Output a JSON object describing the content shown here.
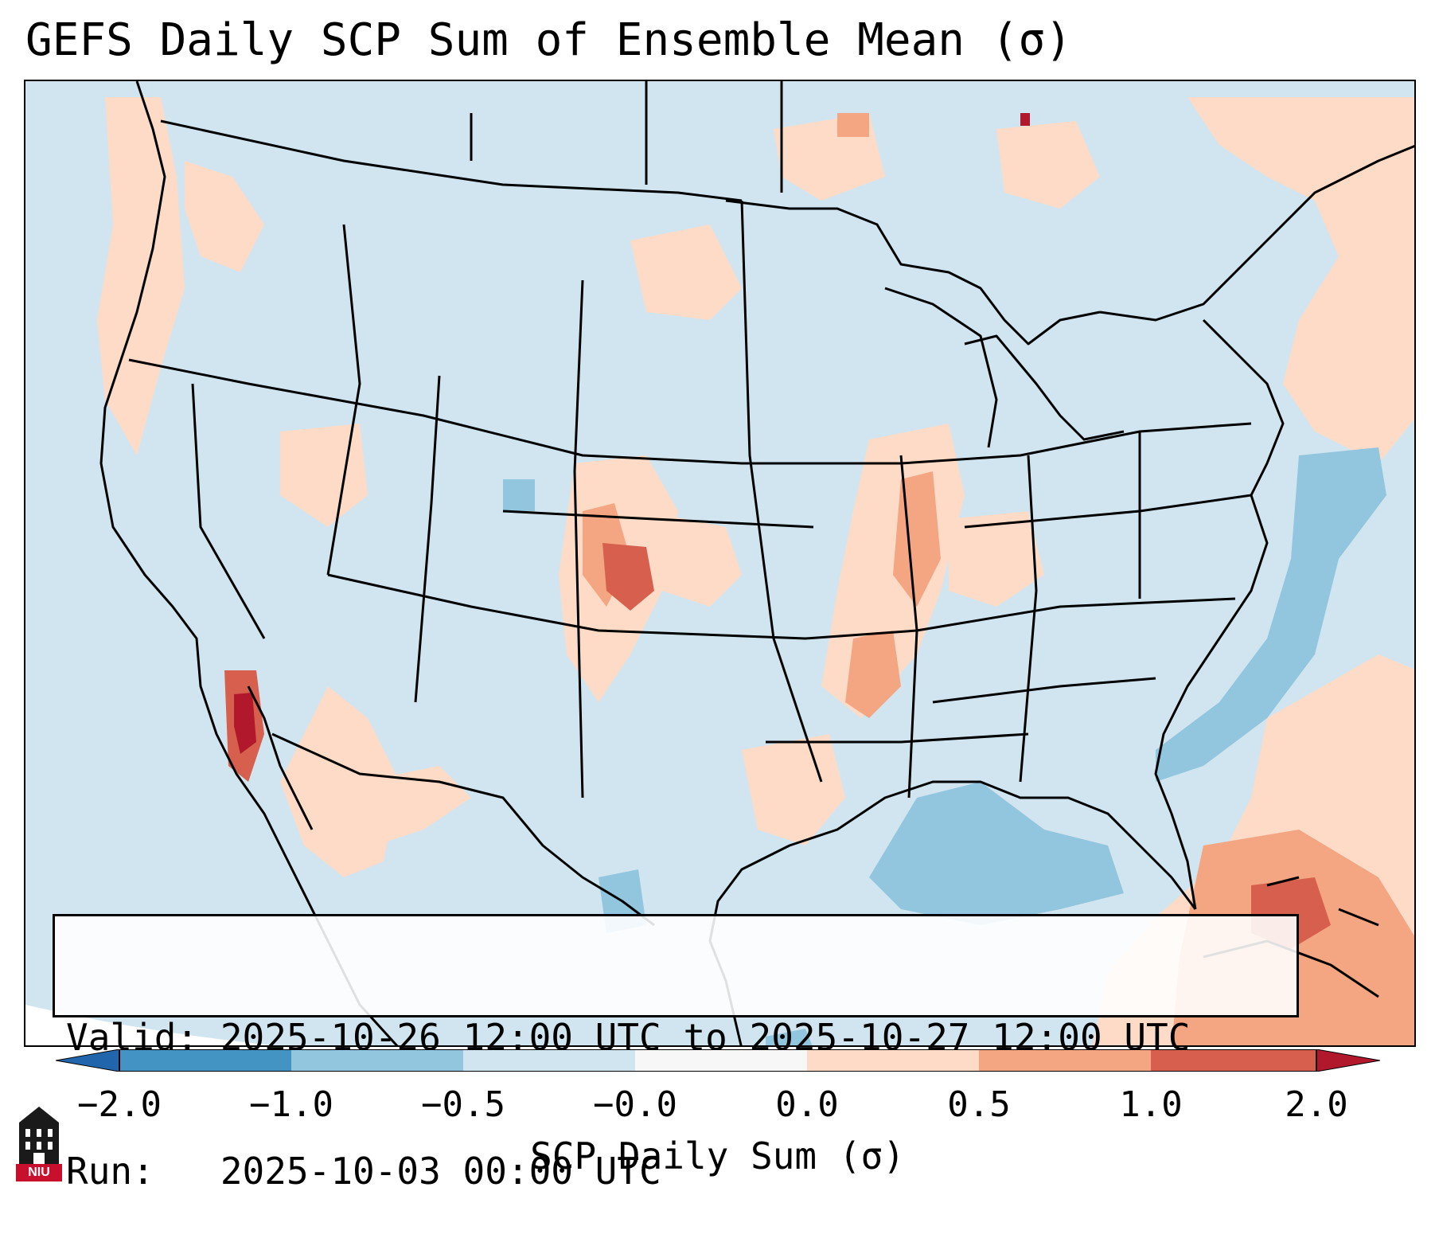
{
  "title": "GEFS Daily SCP Sum of Ensemble Mean (σ)",
  "info": {
    "valid_line": "Valid: 2025-10-26 12:00 UTC to 2025-10-27 12:00 UTC",
    "run_line": "Run:   2025-10-03 00:00 UTC"
  },
  "colorbar": {
    "label": "SCP Daily Sum (σ)",
    "ticks": [
      "−2.0",
      "−1.0",
      "−0.5",
      "−0.0",
      "0.0",
      "0.5",
      "1.0",
      "2.0"
    ],
    "colors": {
      "below": "#2166ac",
      "b1": "#4393c3",
      "b2": "#92c5de",
      "b3": "#d1e5f0",
      "b4": "#f7f7f7",
      "b5": "#fddbc7",
      "b6": "#f4a582",
      "b7": "#d6604d",
      "above": "#b2182b"
    }
  },
  "logo": {
    "icon": "niu-tower-icon",
    "text": "NIU"
  },
  "map": {
    "background": "#d1e5f0",
    "outline_color": "#000000"
  }
}
